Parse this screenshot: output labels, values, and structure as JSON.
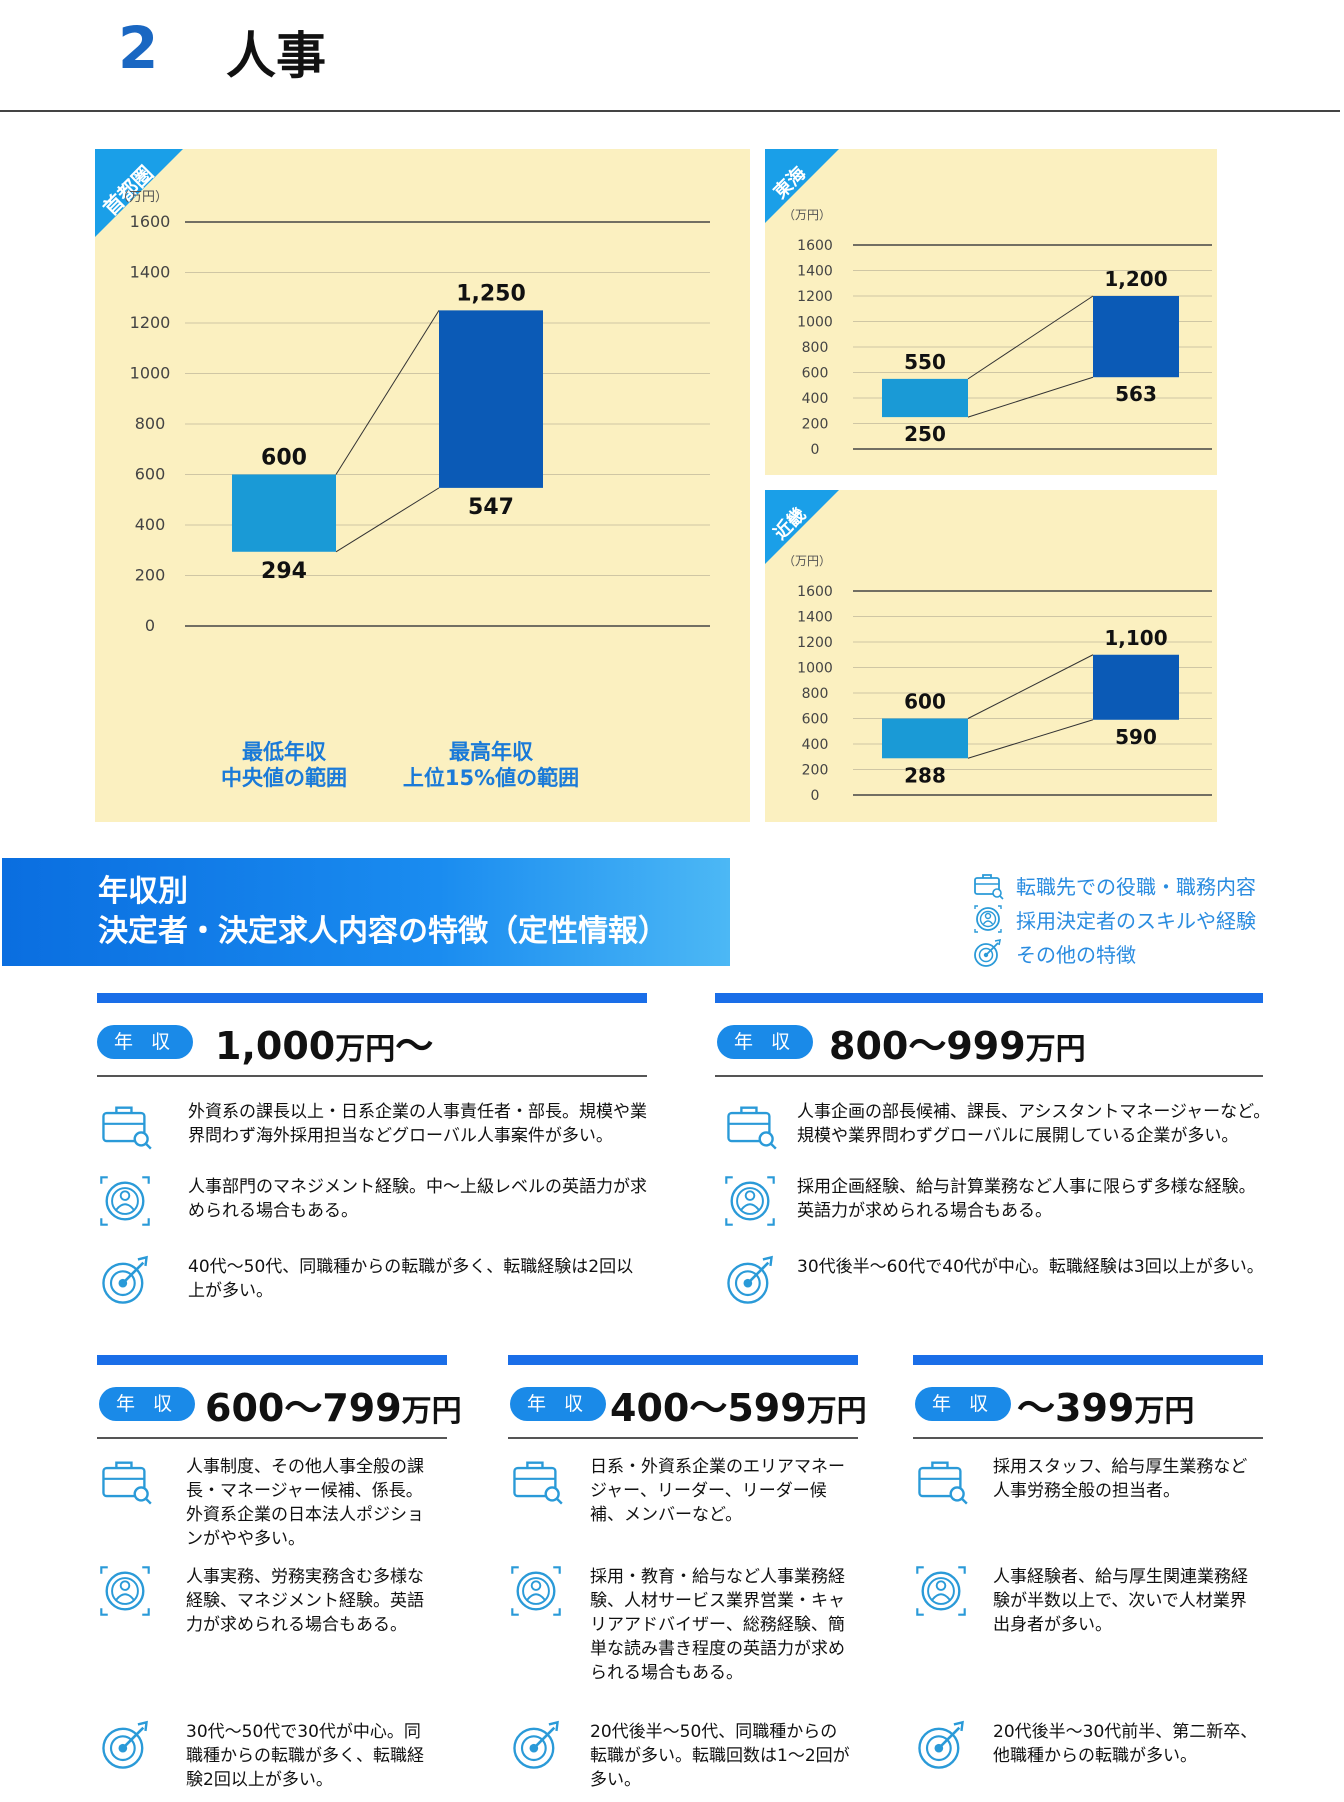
{
  "header": {
    "number": "2",
    "title": "人事"
  },
  "charts": {
    "unit": "（万円）",
    "x_labels": [
      {
        "line1": "最低年収",
        "line2": "中央値の範囲"
      },
      {
        "line1": "最高年収",
        "line2": "上位15%値の範囲"
      }
    ]
  },
  "chart_data": [
    {
      "type": "bar",
      "title": "首都圏",
      "ylabel": "（万円）",
      "ylim": [
        0,
        1600
      ],
      "yticks": [
        0,
        200,
        400,
        600,
        800,
        1000,
        1200,
        1400,
        1600
      ],
      "categories": [
        "最低年収 中央値の範囲",
        "最高年収 上位15%値の範囲"
      ],
      "ranges": [
        {
          "low": 294,
          "high": 600,
          "low_label": "294",
          "high_label": "600"
        },
        {
          "low": 547,
          "high": 1250,
          "low_label": "547",
          "high_label": "1,250"
        }
      ]
    },
    {
      "type": "bar",
      "title": "東海",
      "ylabel": "（万円）",
      "ylim": [
        0,
        1600
      ],
      "yticks": [
        0,
        200,
        400,
        600,
        800,
        1000,
        1200,
        1400,
        1600
      ],
      "categories": [
        "最低年収 中央値の範囲",
        "最高年収 上位15%値の範囲"
      ],
      "ranges": [
        {
          "low": 250,
          "high": 550,
          "low_label": "250",
          "high_label": "550"
        },
        {
          "low": 563,
          "high": 1200,
          "low_label": "563",
          "high_label": "1,200"
        }
      ]
    },
    {
      "type": "bar",
      "title": "近畿",
      "ylabel": "（万円）",
      "ylim": [
        0,
        1600
      ],
      "yticks": [
        0,
        200,
        400,
        600,
        800,
        1000,
        1200,
        1400,
        1600
      ],
      "categories": [
        "最低年収 中央値の範囲",
        "最高年収 上位15%値の範囲"
      ],
      "ranges": [
        {
          "low": 288,
          "high": 600,
          "low_label": "288",
          "high_label": "600"
        },
        {
          "low": 590,
          "high": 1100,
          "low_label": "590",
          "high_label": "1,100"
        }
      ]
    }
  ],
  "section": {
    "line1": "年収別",
    "line2": "決定者・決定求人内容の特徴（定性情報）"
  },
  "legend": [
    {
      "icon": "briefcase-icon",
      "label": "転職先での役職・職務内容"
    },
    {
      "icon": "person-target-icon",
      "label": "採用決定者のスキルや経験"
    },
    {
      "icon": "dart-target-icon",
      "label": "その他の特徴"
    }
  ],
  "pill_label": "年 収",
  "unit_label": "万円",
  "groups": [
    {
      "range": "1,000",
      "suffix": "〜",
      "items": [
        "外資系の課長以上・日系企業の人事責任者・部長。規模や業界問わず海外採用担当などグローバル人事案件が多い。",
        "人事部門のマネジメント経験。中〜上級レベルの英語力が求められる場合もある。",
        "40代〜50代、同職種からの転職が多く、転職経験は2回以上が多い。"
      ]
    },
    {
      "range": "800〜999",
      "suffix": "",
      "items": [
        "人事企画の部長候補、課長、アシスタントマネージャーなど。規模や業界問わずグローバルに展開している企業が多い。",
        "採用企画経験、給与計算業務など人事に限らず多様な経験。英語力が求められる場合もある。",
        "30代後半〜60代で40代が中心。転職経験は3回以上が多い。"
      ]
    },
    {
      "range": "600〜799",
      "suffix": "",
      "items": [
        "人事制度、その他人事全般の課長・マネージャー候補、係長。外資系企業の日本法人ポジションがやや多い。",
        "人事実務、労務実務含む多様な経験、マネジメント経験。英語力が求められる場合もある。",
        "30代〜50代で30代が中心。同職種からの転職が多く、転職経験2回以上が多い。"
      ]
    },
    {
      "range": "400〜599",
      "suffix": "",
      "items": [
        "日系・外資系企業のエリアマネージャー、リーダー、リーダー候補、メンバーなど。",
        "採用・教育・給与など人事業務経験、人材サービス業界営業・キャリアアドバイザー、総務経験、簡単な読み書き程度の英語力が求められる場合もある。",
        "20代後半〜50代、同職種からの転職が多い。転職回数は1〜2回が多い。"
      ]
    },
    {
      "range": "〜399",
      "suffix": "",
      "items": [
        "採用スタッフ、給与厚生業務など人事労務全般の担当者。",
        "人事経験者、給与厚生関連業務経験が半数以上で、次いで人材業界出身者が多い。",
        "20代後半〜30代前半、第二新卒、他職種からの転職が多い。"
      ]
    }
  ],
  "colors": {
    "accent": "#1a6ee8",
    "bar_light": "#1a9ad6",
    "bar_dark": "#0b5ab6",
    "panel_bg": "#fbf0c0",
    "label_blue": "#1a7ad8"
  }
}
